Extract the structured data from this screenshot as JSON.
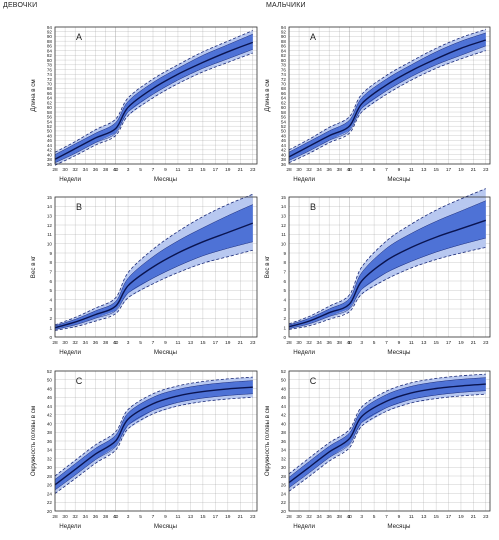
{
  "columns": {
    "girls": "ДЕВОЧКИ",
    "boys": "МАЛЬЧИКИ"
  },
  "colors": {
    "band": "#4e72d6",
    "band_light": "#b8c8f0",
    "median": "#0a1450",
    "dashed": "#1b2a78",
    "grid": "#9a9a9a",
    "frame": "#333333"
  },
  "x_axis": {
    "weeks_ticks": [
      "28",
      "30",
      "32",
      "34",
      "36",
      "38",
      "40"
    ],
    "months_ticks": [
      "1",
      "3",
      "5",
      "7",
      "9",
      "11",
      "13",
      "15",
      "17",
      "19",
      "21",
      "23"
    ],
    "weeks_label": "Недели",
    "months_label": "Месяцы"
  },
  "chart_data": [
    {
      "type": "line",
      "panel": "A",
      "group": "ДЕВОЧКИ",
      "ylabel": "Длина в см",
      "ylim": [
        36,
        94
      ],
      "yticks": [
        36,
        38,
        40,
        42,
        44,
        46,
        48,
        50,
        52,
        54,
        56,
        58,
        60,
        62,
        64,
        66,
        68,
        70,
        72,
        74,
        76,
        78,
        80,
        82,
        84,
        86,
        88,
        90,
        92,
        94
      ],
      "x": [
        "28 нед",
        "32 нед",
        "36 нед",
        "40 нед",
        "3 мес",
        "7 мес",
        "11 мес",
        "15 мес",
        "19 мес",
        "23 мес"
      ],
      "series": [
        {
          "values": [
            38,
            42.5,
            47,
            51,
            60,
            68,
            74,
            79,
            83.5,
            87.5
          ]
        },
        {
          "values": [
            36.5,
            40.5,
            45,
            49,
            58,
            65.5,
            71.5,
            76.5,
            80.5,
            84.5
          ]
        },
        {
          "values": [
            40,
            44.5,
            49,
            53.5,
            62.5,
            70.5,
            76.5,
            82,
            86.5,
            91
          ]
        },
        {
          "values": [
            35.5,
            39.5,
            44,
            48,
            56.5,
            64,
            70,
            75,
            79,
            83
          ]
        },
        {
          "values": [
            41,
            45.5,
            50.5,
            55,
            64,
            72,
            78,
            83.5,
            88,
            92.5
          ]
        }
      ]
    },
    {
      "type": "line",
      "panel": "A",
      "group": "МАЛЬЧИКИ",
      "ylabel": "Длина в см",
      "ylim": [
        36,
        94
      ],
      "yticks": [
        36,
        38,
        40,
        42,
        44,
        46,
        48,
        50,
        52,
        54,
        56,
        58,
        60,
        62,
        64,
        66,
        68,
        70,
        72,
        74,
        76,
        78,
        80,
        82,
        84,
        86,
        88,
        90,
        92,
        94
      ],
      "x": [
        "28 нед",
        "32 нед",
        "36 нед",
        "40 нед",
        "3 мес",
        "7 мес",
        "11 мес",
        "15 мес",
        "19 мес",
        "23 мес"
      ],
      "series": [
        {
          "values": [
            39,
            43.5,
            48,
            52,
            61.5,
            69.5,
            75.5,
            80.5,
            85,
            88.5
          ]
        },
        {
          "values": [
            37.5,
            41.5,
            46,
            50,
            59.5,
            67,
            73,
            78,
            82,
            86
          ]
        },
        {
          "values": [
            41,
            45.5,
            50,
            54.5,
            64,
            72,
            78,
            83.5,
            88,
            91.5
          ]
        },
        {
          "values": [
            36.5,
            40.5,
            45,
            49,
            58,
            65.5,
            71.5,
            76.5,
            80.5,
            84
          ]
        },
        {
          "values": [
            42,
            46.5,
            51.5,
            56,
            65.5,
            73.5,
            79.5,
            85,
            89.5,
            93
          ]
        }
      ]
    },
    {
      "type": "line",
      "panel": "B",
      "group": "ДЕВОЧКИ",
      "ylabel": "Вес в кг",
      "ylim": [
        0,
        15
      ],
      "yticks": [
        0,
        1,
        2,
        3,
        4,
        5,
        6,
        7,
        8,
        9,
        10,
        11,
        12,
        13,
        14,
        15
      ],
      "x": [
        "28 нед",
        "32 нед",
        "36 нед",
        "40 нед",
        "3 мес",
        "7 мес",
        "11 мес",
        "15 мес",
        "19 мес",
        "23 мес"
      ],
      "series": [
        {
          "values": [
            1,
            1.6,
            2.4,
            3.3,
            5.5,
            7.5,
            9,
            10.2,
            11.2,
            12.2
          ]
        },
        {
          "values": [
            0.8,
            1.3,
            2,
            2.8,
            4.7,
            6.3,
            7.6,
            8.7,
            9.5,
            10.2
          ]
        },
        {
          "values": [
            1.2,
            1.9,
            2.8,
            3.8,
            6.3,
            8.6,
            10.3,
            11.7,
            13,
            14.2
          ]
        },
        {
          "values": [
            0.7,
            1.1,
            1.7,
            2.5,
            4.2,
            5.7,
            6.9,
            7.9,
            8.6,
            9.3
          ]
        },
        {
          "values": [
            1.3,
            2.1,
            3.1,
            4.2,
            6.9,
            9.4,
            11.3,
            12.9,
            14.2,
            15.3
          ]
        }
      ]
    },
    {
      "type": "line",
      "panel": "B",
      "group": "МАЛЬЧИКИ",
      "ylabel": "Вес в кг",
      "ylim": [
        0,
        15
      ],
      "yticks": [
        0,
        1,
        2,
        3,
        4,
        5,
        6,
        7,
        8,
        9,
        10,
        11,
        12,
        13,
        14,
        15
      ],
      "x": [
        "28 нед",
        "32 нед",
        "36 нед",
        "40 нед",
        "3 мес",
        "7 мес",
        "11 мес",
        "15 мес",
        "19 мес",
        "23 мес"
      ],
      "series": [
        {
          "values": [
            1.1,
            1.7,
            2.6,
            3.5,
            6,
            8.2,
            9.6,
            10.7,
            11.6,
            12.5
          ]
        },
        {
          "values": [
            0.9,
            1.4,
            2.2,
            3,
            5.1,
            6.9,
            8.1,
            9.1,
            9.9,
            10.6
          ]
        },
        {
          "values": [
            1.3,
            2,
            3,
            4.1,
            6.9,
            9.5,
            11.1,
            12.4,
            13.5,
            14.6
          ]
        },
        {
          "values": [
            0.8,
            1.2,
            1.9,
            2.7,
            4.6,
            6.2,
            7.4,
            8.3,
            9,
            9.6
          ]
        },
        {
          "values": [
            1.4,
            2.2,
            3.3,
            4.5,
            7.5,
            10.3,
            12.1,
            13.6,
            14.8,
            15.9
          ]
        }
      ]
    },
    {
      "type": "line",
      "panel": "C",
      "group": "ДЕВОЧКИ",
      "ylabel": "Окружность головы в см",
      "ylim": [
        20,
        52
      ],
      "yticks": [
        20,
        22,
        24,
        26,
        28,
        30,
        32,
        34,
        36,
        38,
        40,
        42,
        44,
        46,
        48,
        50,
        52
      ],
      "x": [
        "28 нед",
        "32 нед",
        "36 нед",
        "40 нед",
        "3 мес",
        "7 мес",
        "11 мес",
        "15 мес",
        "19 мес",
        "23 мес"
      ],
      "series": [
        {
          "values": [
            26,
            29.5,
            33,
            36,
            41,
            44.5,
            46.3,
            47.3,
            47.9,
            48.3
          ]
        },
        {
          "values": [
            24.8,
            28.2,
            31.7,
            34.7,
            39.6,
            43,
            44.8,
            45.8,
            46.4,
            46.8
          ]
        },
        {
          "values": [
            27.2,
            30.8,
            34.3,
            37.3,
            42.4,
            46,
            47.8,
            48.8,
            49.4,
            49.8
          ]
        },
        {
          "values": [
            24,
            27.4,
            30.9,
            33.9,
            38.8,
            42.2,
            44,
            45,
            45.6,
            46
          ]
        },
        {
          "values": [
            28,
            31.6,
            35.1,
            38.1,
            43.2,
            46.8,
            48.6,
            49.6,
            50.2,
            50.6
          ]
        }
      ]
    },
    {
      "type": "line",
      "panel": "C",
      "group": "МАЛЬЧИКИ",
      "ylabel": "Окружность головы в см",
      "ylim": [
        20,
        52
      ],
      "yticks": [
        20,
        22,
        24,
        26,
        28,
        30,
        32,
        34,
        36,
        38,
        40,
        42,
        44,
        46,
        48,
        50,
        52
      ],
      "x": [
        "28 нед",
        "32 нед",
        "36 нед",
        "40 нед",
        "3 мес",
        "7 мес",
        "11 мес",
        "15 мес",
        "19 мес",
        "23 мес"
      ],
      "series": [
        {
          "values": [
            26.5,
            30,
            33.5,
            36.5,
            41.6,
            45.1,
            47,
            48,
            48.6,
            49
          ]
        },
        {
          "values": [
            25.3,
            28.7,
            32.2,
            35.2,
            40.2,
            43.6,
            45.5,
            46.5,
            47.1,
            47.5
          ]
        },
        {
          "values": [
            27.7,
            31.3,
            34.8,
            37.8,
            43,
            46.6,
            48.5,
            49.5,
            50.1,
            50.5
          ]
        },
        {
          "values": [
            24.5,
            27.9,
            31.4,
            34.4,
            39.4,
            42.8,
            44.7,
            45.7,
            46.3,
            46.7
          ]
        },
        {
          "values": [
            28.5,
            32.1,
            35.6,
            38.6,
            43.8,
            47.4,
            49.3,
            50.3,
            50.9,
            51.3
          ]
        }
      ]
    }
  ]
}
